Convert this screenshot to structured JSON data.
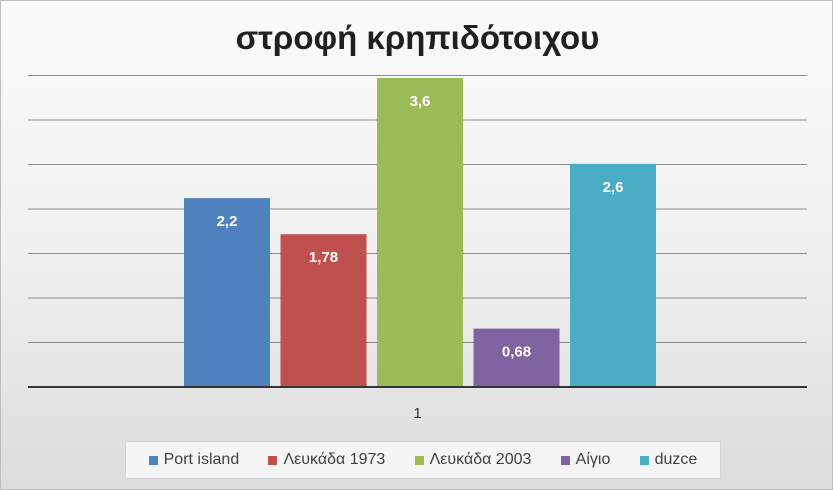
{
  "chart_data": {
    "type": "bar",
    "title": "στροφή κρηπιδότοιχου",
    "categories": [
      "1"
    ],
    "series": [
      {
        "name": "Port island",
        "values": [
          2.2
        ],
        "label": "2,2",
        "color": "#4f81bd"
      },
      {
        "name": "Λευκάδα 1973",
        "values": [
          1.78
        ],
        "label": "1,78",
        "color": "#c0504d"
      },
      {
        "name": "Λευκάδα 2003",
        "values": [
          3.6
        ],
        "label": "3,6",
        "color": "#9bbb59"
      },
      {
        "name": "Αίγιο",
        "values": [
          0.68
        ],
        "label": "0,68",
        "color": "#8064a2"
      },
      {
        "name": "duzce",
        "values": [
          2.6
        ],
        "label": "2,6",
        "color": "#4bacc6"
      }
    ],
    "ylim": [
      0,
      3.6
    ],
    "grid": true,
    "legend_position": "bottom"
  }
}
